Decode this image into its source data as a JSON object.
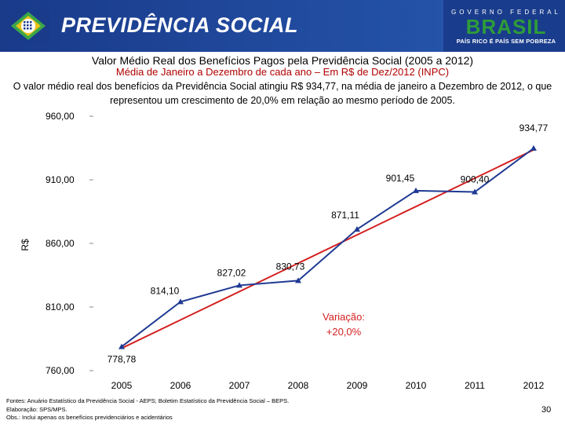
{
  "header": {
    "brand": "PREVIDÊNCIA SOCIAL",
    "gov_top": "GOVERNO FEDERAL",
    "gov_main": "BRASIL",
    "gov_slogan": "PAÍS RICO É PAÍS SEM POBREZA"
  },
  "slide": {
    "title": "Valor Médio Real dos Benefícios Pagos pela Previdência Social (2005 a 2012)",
    "subtitle": "Média de Janeiro a Dezembro de cada ano – Em R$ de Dez/2012 (INPC)",
    "description": "O valor médio real dos benefícios da Previdência Social atingiu R$ 934,77, na média de janeiro a Dezembro de 2012, o que representou um crescimento de 20,0% em relação ao mesmo período de 2005.",
    "footnotes": [
      "Fontes: Anuário Estatístico da Previdência Social - AEPS; Boletim Estatístico da Previdência Social – BEPS.",
      "Elaboração: SPS/MPS.",
      "Obs.: Inclui apenas os benefícios previdenciários e acidentários"
    ],
    "page_number": "30"
  },
  "colors": {
    "header_blue": "#1a3c8c",
    "series_blue": "#1f3a93",
    "trend_red": "#d42020",
    "subtitle_red": "#b00000"
  },
  "chart_data": {
    "type": "line",
    "title": "Valor Médio Real dos Benefícios Pagos pela Previdência Social (2005 a 2012)",
    "xlabel": "",
    "ylabel": "R$",
    "categories": [
      "2005",
      "2006",
      "2007",
      "2008",
      "2009",
      "2010",
      "2011",
      "2012"
    ],
    "series": [
      {
        "name": "Valor médio real",
        "values": [
          778.78,
          814.1,
          827.02,
          830.73,
          871.11,
          901.45,
          900.4,
          934.77
        ],
        "data_labels": [
          "778,78",
          "814,10",
          "827,02",
          "830,73",
          "871,11",
          "901,45",
          "900,40",
          "934,77"
        ]
      }
    ],
    "ylim": [
      760,
      960
    ],
    "yticks": [
      760,
      810,
      860,
      910,
      960
    ],
    "ytick_labels": [
      "760,00",
      "810,00",
      "860,00",
      "910,00",
      "960,00"
    ],
    "trend_line": {
      "from_index": 0,
      "from_value": 778.78,
      "to_index": 7,
      "to_value": 934.77
    },
    "annotation": {
      "line1": "Variação:",
      "line2": "+20,0%"
    },
    "grid": false,
    "legend": "none"
  }
}
